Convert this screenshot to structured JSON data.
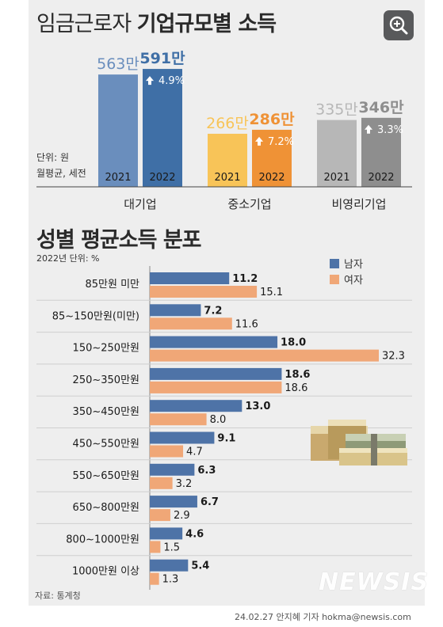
{
  "title": {
    "part1": "임금근로자",
    "part2": "기업규모별 소득"
  },
  "top_unit_line1": "단위: 원",
  "top_unit_line2": "월평균, 세전",
  "second_title": "성별 평균소득 분포",
  "second_unit": "2022년 단위: %",
  "source": "자료: 통계청",
  "byline": "24.02.27 안지혜 기자 hokma@newsis.com",
  "watermark": "NEWSIS",
  "icons": {
    "zoom": "zoom-in-icon",
    "money": "money-stack-icon",
    "arrow": "arrow-up-icon"
  },
  "chart_data": [
    {
      "type": "bar",
      "categories": [
        "대기업",
        "중소기업",
        "비영리기업"
      ],
      "years": [
        "2021",
        "2022"
      ],
      "value_labels": [
        [
          "563만",
          "591만"
        ],
        [
          "266만",
          "286만"
        ],
        [
          "335만",
          "346만"
        ]
      ],
      "values": [
        [
          563,
          591
        ],
        [
          266,
          286
        ],
        [
          335,
          346
        ]
      ],
      "change_labels": [
        "4.9%",
        "7.2%",
        "3.3%"
      ],
      "colors": [
        [
          "#6a8ebd",
          "#3f6fa6"
        ],
        [
          "#f8c458",
          "#ef9236"
        ],
        [
          "#b7b7b7",
          "#8e8e8e"
        ]
      ],
      "ylim": [
        0,
        640
      ]
    },
    {
      "type": "bar",
      "orientation": "horizontal",
      "categories": [
        "85만원 미만",
        "85~150만원(미만)",
        "150~250만원",
        "250~350만원",
        "350~450만원",
        "450~550만원",
        "550~650만원",
        "650~800만원",
        "800~1000만원",
        "1000만원 이상"
      ],
      "series": [
        {
          "name": "남자",
          "color": "#4e73a7",
          "values": [
            11.2,
            7.2,
            18.0,
            18.6,
            13.0,
            9.1,
            6.3,
            6.7,
            4.6,
            5.4
          ]
        },
        {
          "name": "여자",
          "color": "#f0a777",
          "values": [
            15.1,
            11.6,
            32.3,
            18.6,
            8.0,
            4.7,
            3.2,
            2.9,
            1.5,
            1.3
          ]
        }
      ],
      "value_labels": [
        [
          "11.2",
          "15.1"
        ],
        [
          "7.2",
          "11.6"
        ],
        [
          "18.0",
          "32.3"
        ],
        [
          "18.6",
          "18.6"
        ],
        [
          "13.0",
          "8.0"
        ],
        [
          "9.1",
          "4.7"
        ],
        [
          "6.3",
          "3.2"
        ],
        [
          "6.7",
          "2.9"
        ],
        [
          "4.6",
          "1.5"
        ],
        [
          "5.4",
          "1.3"
        ]
      ],
      "xlim": [
        0,
        32.3
      ],
      "legend": "top-right"
    }
  ]
}
